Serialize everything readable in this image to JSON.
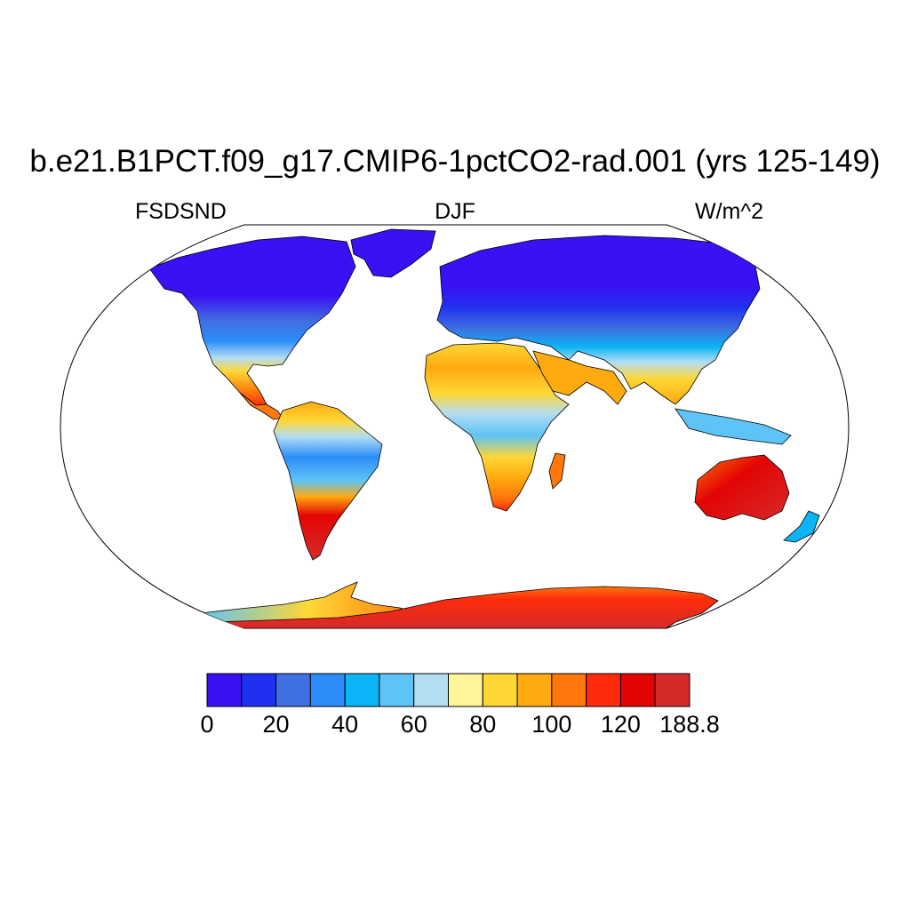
{
  "title": "b.e21.B1PCT.f09_g17.CMIP6-1pctCO2-rad.001 (yrs 125-149)",
  "variable_label": "FSDSND",
  "season_label": "DJF",
  "units_label": "W/m^2",
  "colorbar": {
    "colors": [
      "#3a10f5",
      "#1f30f0",
      "#3f6fe0",
      "#2c8dfa",
      "#0bb5f5",
      "#5ec3f5",
      "#b3ddf3",
      "#fff59a",
      "#ffd735",
      "#ffaa0f",
      "#ff780c",
      "#ff2b0b",
      "#e30404",
      "#d62a2a"
    ],
    "tick_labels": [
      "0",
      "20",
      "40",
      "60",
      "80",
      "100",
      "120",
      "188.8"
    ],
    "tick_boundaries": [
      0,
      2,
      4,
      6,
      8,
      10,
      12,
      14
    ]
  }
}
